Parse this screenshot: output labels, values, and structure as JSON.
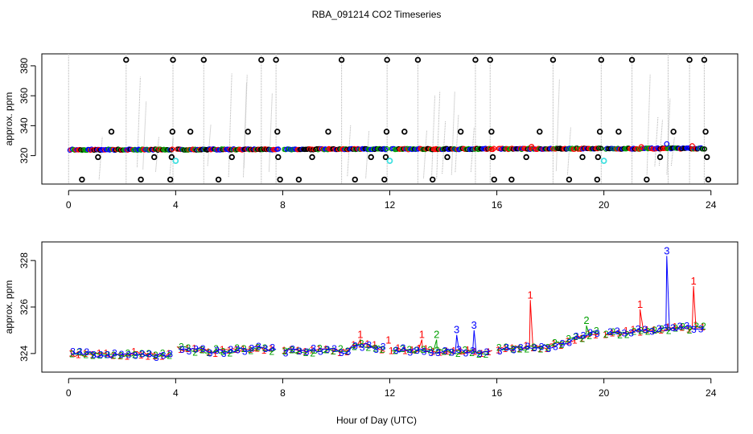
{
  "title": "RBA_091214  CO2 Timeseries",
  "xlabel": "Hour of Day (UTC)",
  "chart_data": [
    {
      "type": "scatter",
      "title": "RBA_091214  CO2 Timeseries",
      "ylabel": "approx. ppm",
      "xlim": [
        -1,
        25
      ],
      "ylim": [
        301,
        388
      ],
      "x_ticks": [
        0,
        4,
        8,
        12,
        16,
        20,
        24
      ],
      "x_tick_labels": [
        "0",
        "4",
        "8",
        "12",
        "16",
        "20",
        "24"
      ],
      "y_ticks": [
        320,
        340,
        360,
        380
      ],
      "y_tick_labels": [
        "320",
        "340",
        "360",
        "380"
      ],
      "baseline": {
        "start": 323.9,
        "end": 324.8,
        "gaps": [
          [
            3.9,
            4.05
          ],
          [
            7.85,
            8.05
          ],
          [
            11.9,
            12.05
          ],
          [
            15.9,
            16.05
          ],
          [
            19.9,
            20.05
          ]
        ]
      },
      "spike_points": [
        {
          "x": 0.5,
          "y": 304
        },
        {
          "x": 1.1,
          "y": 319
        },
        {
          "x": 1.6,
          "y": 336
        },
        {
          "x": 2.15,
          "y": 384
        },
        {
          "x": 2.7,
          "y": 304
        },
        {
          "x": 3.2,
          "y": 319
        },
        {
          "x": 3.8,
          "y": 304
        },
        {
          "x": 3.85,
          "y": 319
        },
        {
          "x": 3.88,
          "y": 336
        },
        {
          "x": 3.9,
          "y": 384
        },
        {
          "x": 4.55,
          "y": 336
        },
        {
          "x": 5.05,
          "y": 384
        },
        {
          "x": 5.6,
          "y": 304
        },
        {
          "x": 6.1,
          "y": 319
        },
        {
          "x": 6.7,
          "y": 336
        },
        {
          "x": 7.2,
          "y": 384
        },
        {
          "x": 7.75,
          "y": 384
        },
        {
          "x": 7.8,
          "y": 336
        },
        {
          "x": 7.83,
          "y": 319
        },
        {
          "x": 7.9,
          "y": 304
        },
        {
          "x": 8.6,
          "y": 304
        },
        {
          "x": 9.1,
          "y": 319
        },
        {
          "x": 9.7,
          "y": 336
        },
        {
          "x": 10.2,
          "y": 384
        },
        {
          "x": 10.7,
          "y": 304
        },
        {
          "x": 11.3,
          "y": 319
        },
        {
          "x": 11.8,
          "y": 304
        },
        {
          "x": 11.85,
          "y": 319
        },
        {
          "x": 11.88,
          "y": 336
        },
        {
          "x": 11.9,
          "y": 384
        },
        {
          "x": 12.55,
          "y": 336
        },
        {
          "x": 13.05,
          "y": 384
        },
        {
          "x": 13.6,
          "y": 304
        },
        {
          "x": 14.15,
          "y": 319
        },
        {
          "x": 14.65,
          "y": 336
        },
        {
          "x": 15.2,
          "y": 384
        },
        {
          "x": 15.75,
          "y": 384
        },
        {
          "x": 15.8,
          "y": 336
        },
        {
          "x": 15.85,
          "y": 319
        },
        {
          "x": 15.9,
          "y": 304
        },
        {
          "x": 16.55,
          "y": 304
        },
        {
          "x": 17.1,
          "y": 319
        },
        {
          "x": 17.6,
          "y": 336
        },
        {
          "x": 18.1,
          "y": 384
        },
        {
          "x": 18.7,
          "y": 304
        },
        {
          "x": 19.2,
          "y": 319
        },
        {
          "x": 19.75,
          "y": 304
        },
        {
          "x": 19.78,
          "y": 319
        },
        {
          "x": 19.85,
          "y": 336
        },
        {
          "x": 19.9,
          "y": 384
        },
        {
          "x": 20.55,
          "y": 336
        },
        {
          "x": 21.05,
          "y": 384
        },
        {
          "x": 21.6,
          "y": 304
        },
        {
          "x": 22.1,
          "y": 319
        },
        {
          "x": 22.6,
          "y": 336
        },
        {
          "x": 23.2,
          "y": 384
        },
        {
          "x": 23.75,
          "y": 384
        },
        {
          "x": 23.8,
          "y": 336
        },
        {
          "x": 23.85,
          "y": 319
        },
        {
          "x": 23.9,
          "y": 304
        }
      ],
      "cyan_points": [
        {
          "x": 4.0,
          "y": 316.5
        },
        {
          "x": 12.0,
          "y": 316.5
        },
        {
          "x": 20.0,
          "y": 316.5
        }
      ],
      "vertical_lines_x": [
        0,
        2.15,
        3.9,
        5.05,
        7.2,
        7.75,
        10.2,
        11.9,
        13.05,
        15.2,
        15.75,
        18.1,
        19.9,
        21.05,
        22.4,
        23.2,
        23.75
      ],
      "colors": {
        "black": "#000000",
        "red": "#ff0000",
        "green": "#00a000",
        "blue": "#0000ff",
        "cyan": "#40e0e0",
        "grey": "#b0b0b0"
      }
    },
    {
      "type": "scatter",
      "ylabel": "approx. ppm",
      "xlim": [
        -1,
        25
      ],
      "ylim": [
        323.2,
        328.8
      ],
      "x_ticks": [
        0,
        4,
        8,
        12,
        16,
        20,
        24
      ],
      "x_tick_labels": [
        "0",
        "4",
        "8",
        "12",
        "16",
        "20",
        "24"
      ],
      "y_ticks": [
        324,
        326,
        328
      ],
      "y_tick_labels": [
        "324",
        "326",
        "328"
      ],
      "series": [
        {
          "name": "1",
          "color": "#ff0000",
          "marker": "1",
          "segments": [
            [
              0.1,
              3.8
            ],
            [
              4.05,
              7.8
            ],
            [
              8.05,
              11.85
            ],
            [
              12.05,
              15.85
            ],
            [
              16.05,
              19.85
            ],
            [
              20.05,
              23.75
            ]
          ],
          "spikes": [
            {
              "x": 10.9,
              "y": 324.6
            },
            {
              "x": 11.95,
              "y": 324.35
            },
            {
              "x": 13.2,
              "y": 324.6
            },
            {
              "x": 17.25,
              "y": 326.3
            },
            {
              "x": 21.35,
              "y": 325.9
            },
            {
              "x": 23.35,
              "y": 326.9
            }
          ]
        },
        {
          "name": "2",
          "color": "#00a000",
          "marker": "2",
          "segments": [
            [
              0.1,
              3.8
            ],
            [
              4.05,
              7.8
            ],
            [
              8.05,
              11.85
            ],
            [
              12.05,
              15.85
            ],
            [
              16.05,
              19.85
            ],
            [
              20.05,
              23.75
            ]
          ],
          "spikes": [
            {
              "x": 13.75,
              "y": 324.6
            },
            {
              "x": 19.35,
              "y": 325.2
            }
          ]
        },
        {
          "name": "3",
          "color": "#0000ff",
          "marker": "3",
          "segments": [
            [
              0.1,
              3.8
            ],
            [
              4.05,
              7.8
            ],
            [
              8.05,
              11.85
            ],
            [
              12.05,
              15.85
            ],
            [
              16.05,
              19.85
            ],
            [
              20.05,
              23.75
            ]
          ],
          "spikes": [
            {
              "x": 14.5,
              "y": 324.8
            },
            {
              "x": 15.15,
              "y": 325.0
            },
            {
              "x": 22.35,
              "y": 328.2
            }
          ]
        }
      ]
    }
  ]
}
